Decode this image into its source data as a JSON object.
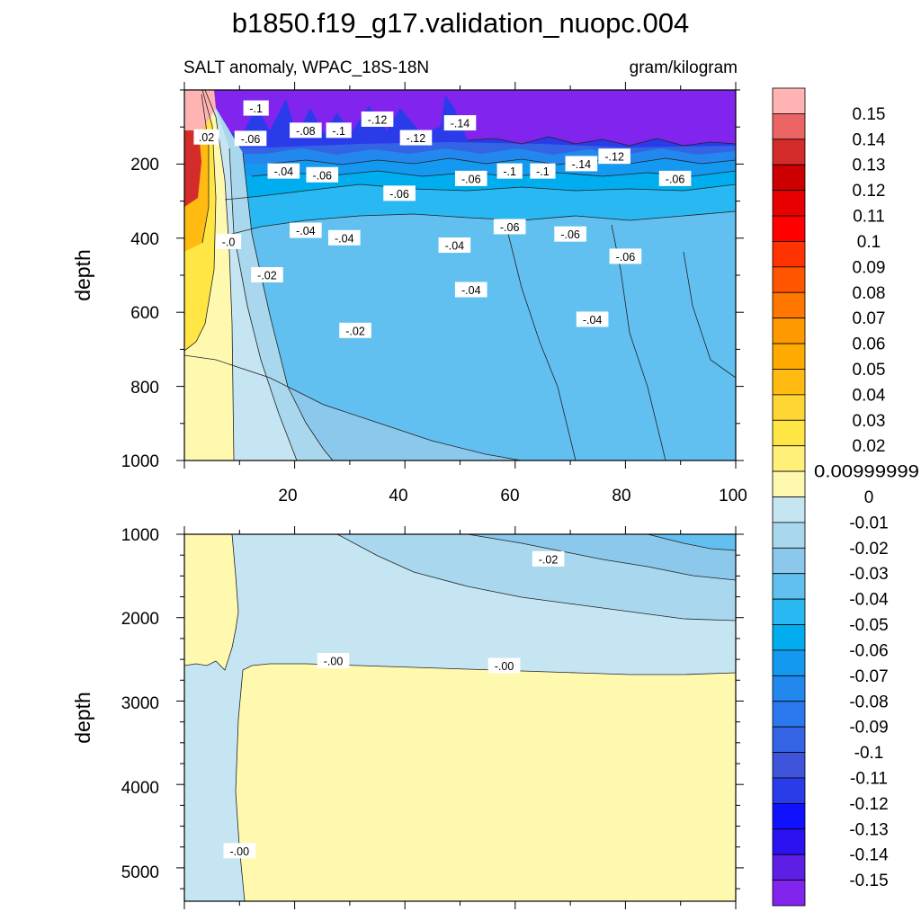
{
  "chart_data": {
    "type": "contour",
    "title": "b1850.f19_g17.validation_nuopc.004",
    "subtitle_left": "SALT anomaly, WPAC_18S-18N",
    "subtitle_right": "gram/kilogram",
    "panels": [
      {
        "id": "upper",
        "ylabel": "depth",
        "xlim": [
          0,
          100
        ],
        "ylim": [
          1000,
          0
        ],
        "x_ticks": [
          "20",
          "40",
          "60",
          "80",
          "100"
        ],
        "y_ticks": [
          "200",
          "400",
          "600",
          "800",
          "1000"
        ],
        "contour_labels": [
          {
            "text": "-.1",
            "x": 13,
            "y": 50
          },
          {
            "text": ".02",
            "x": 4,
            "y": 128
          },
          {
            "text": "-.06",
            "x": 12,
            "y": 132
          },
          {
            "text": "-.08",
            "x": 22,
            "y": 110
          },
          {
            "text": "-.1",
            "x": 28,
            "y": 110
          },
          {
            "text": "-.12",
            "x": 35,
            "y": 80
          },
          {
            "text": "-.12",
            "x": 42,
            "y": 130
          },
          {
            "text": "-.14",
            "x": 50,
            "y": 90
          },
          {
            "text": "-.04",
            "x": 18,
            "y": 220
          },
          {
            "text": "-.06",
            "x": 25,
            "y": 230
          },
          {
            "text": "-.06",
            "x": 39,
            "y": 280
          },
          {
            "text": "-.06",
            "x": 52,
            "y": 240
          },
          {
            "text": "-.1",
            "x": 59,
            "y": 220
          },
          {
            "text": "-.1",
            "x": 65,
            "y": 220
          },
          {
            "text": "-.14",
            "x": 72,
            "y": 200
          },
          {
            "text": "-.12",
            "x": 78,
            "y": 180
          },
          {
            "text": "-.06",
            "x": 89,
            "y": 240
          },
          {
            "text": "-.04",
            "x": 22,
            "y": 380
          },
          {
            "text": "-.04",
            "x": 29,
            "y": 400
          },
          {
            "text": "-.04",
            "x": 49,
            "y": 420
          },
          {
            "text": "-.06",
            "x": 59,
            "y": 370
          },
          {
            "text": "-.06",
            "x": 70,
            "y": 390
          },
          {
            "text": "-.06",
            "x": 80,
            "y": 450
          },
          {
            "text": "-.0",
            "x": 8,
            "y": 410
          },
          {
            "text": "-.02",
            "x": 15,
            "y": 500
          },
          {
            "text": "-.04",
            "x": 52,
            "y": 540
          },
          {
            "text": "-.02",
            "x": 31,
            "y": 650
          },
          {
            "text": "-.04",
            "x": 74,
            "y": 620
          }
        ]
      },
      {
        "id": "lower",
        "ylabel": "depth",
        "xlim": [
          0,
          100
        ],
        "ylim": [
          5400,
          1000
        ],
        "y_ticks": [
          "1000",
          "2000",
          "3000",
          "4000",
          "5000"
        ],
        "contour_labels": [
          {
            "text": "-.02",
            "x": 66,
            "y": 1300
          },
          {
            "text": "-.00",
            "x": 27,
            "y": 2520
          },
          {
            "text": "-.00",
            "x": 58,
            "y": 2580
          },
          {
            "text": "-.00",
            "x": 10,
            "y": 4800
          }
        ]
      }
    ],
    "colorbar": {
      "levels": [
        "0.15",
        "0.14",
        "0.13",
        "0.12",
        "0.11",
        "0.1",
        "0.09",
        "0.08",
        "0.07",
        "0.06",
        "0.05",
        "0.04",
        "0.03",
        "0.02",
        "0.00999999",
        "0",
        "-0.01",
        "-0.02",
        "-0.03",
        "-0.04",
        "-0.05",
        "-0.06",
        "-0.07",
        "-0.08",
        "-0.09",
        "-0.1",
        "-0.11",
        "-0.12",
        "-0.13",
        "-0.14",
        "-0.15"
      ],
      "colors": [
        "#FFB3B3",
        "#EB6464",
        "#D42B2B",
        "#CC0000",
        "#E60000",
        "#FF0000",
        "#FF3300",
        "#FF5500",
        "#FF7700",
        "#FF9900",
        "#FFAA00",
        "#FFBB11",
        "#FFD633",
        "#FFE644",
        "#FFF07A",
        "#FFF9B0",
        "#C6E5F3",
        "#A9D8EE",
        "#8BC8EC",
        "#61C0F0",
        "#29B8F2",
        "#00AEEF",
        "#1499F0",
        "#2288EE",
        "#2B78EE",
        "#3464E4",
        "#3E55DB",
        "#2A3CEA",
        "#1111FF",
        "#2B12F0",
        "#5D1FE6",
        "#8024EE"
      ]
    }
  }
}
